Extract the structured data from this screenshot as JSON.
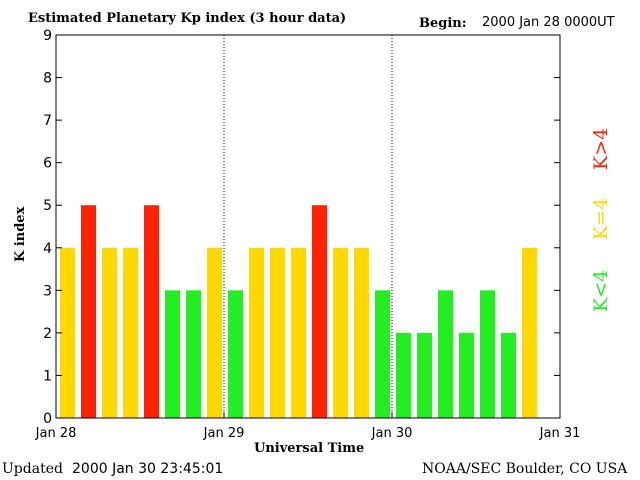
{
  "header": {
    "title": "Estimated Planetary Kp index (3 hour data)",
    "begin_label": "Begin:",
    "begin_value": "2000 Jan 28 0000UT"
  },
  "footer": {
    "updated_label": "Updated",
    "updated_value": "2000 Jan 30 23:45:01",
    "source": "NOAA/SEC Boulder, CO USA"
  },
  "legend": {
    "high": "K>4",
    "mid": "K=4",
    "low": "K<4"
  },
  "colors": {
    "high": "#ff2200",
    "mid": "#ffd800",
    "low": "#22ee22",
    "axis": "#000000"
  },
  "chart_data": {
    "type": "bar",
    "title": "Estimated Planetary Kp index (3 hour data)",
    "xlabel": "Universal Time",
    "ylabel": "K index",
    "ylim": [
      0,
      9
    ],
    "y_ticks": [
      "0",
      "1",
      "2",
      "3",
      "4",
      "5",
      "6",
      "7",
      "8",
      "9"
    ],
    "x_tick_labels": [
      "Jan 28",
      "Jan 29",
      "Jan 30",
      "Jan 31"
    ],
    "grid": false,
    "day_separators": "dotted",
    "values": [
      4,
      5,
      4,
      4,
      5,
      3,
      3,
      4,
      3,
      4,
      4,
      4,
      5,
      4,
      4,
      3,
      2,
      2,
      3,
      2,
      3,
      2,
      4
    ]
  }
}
